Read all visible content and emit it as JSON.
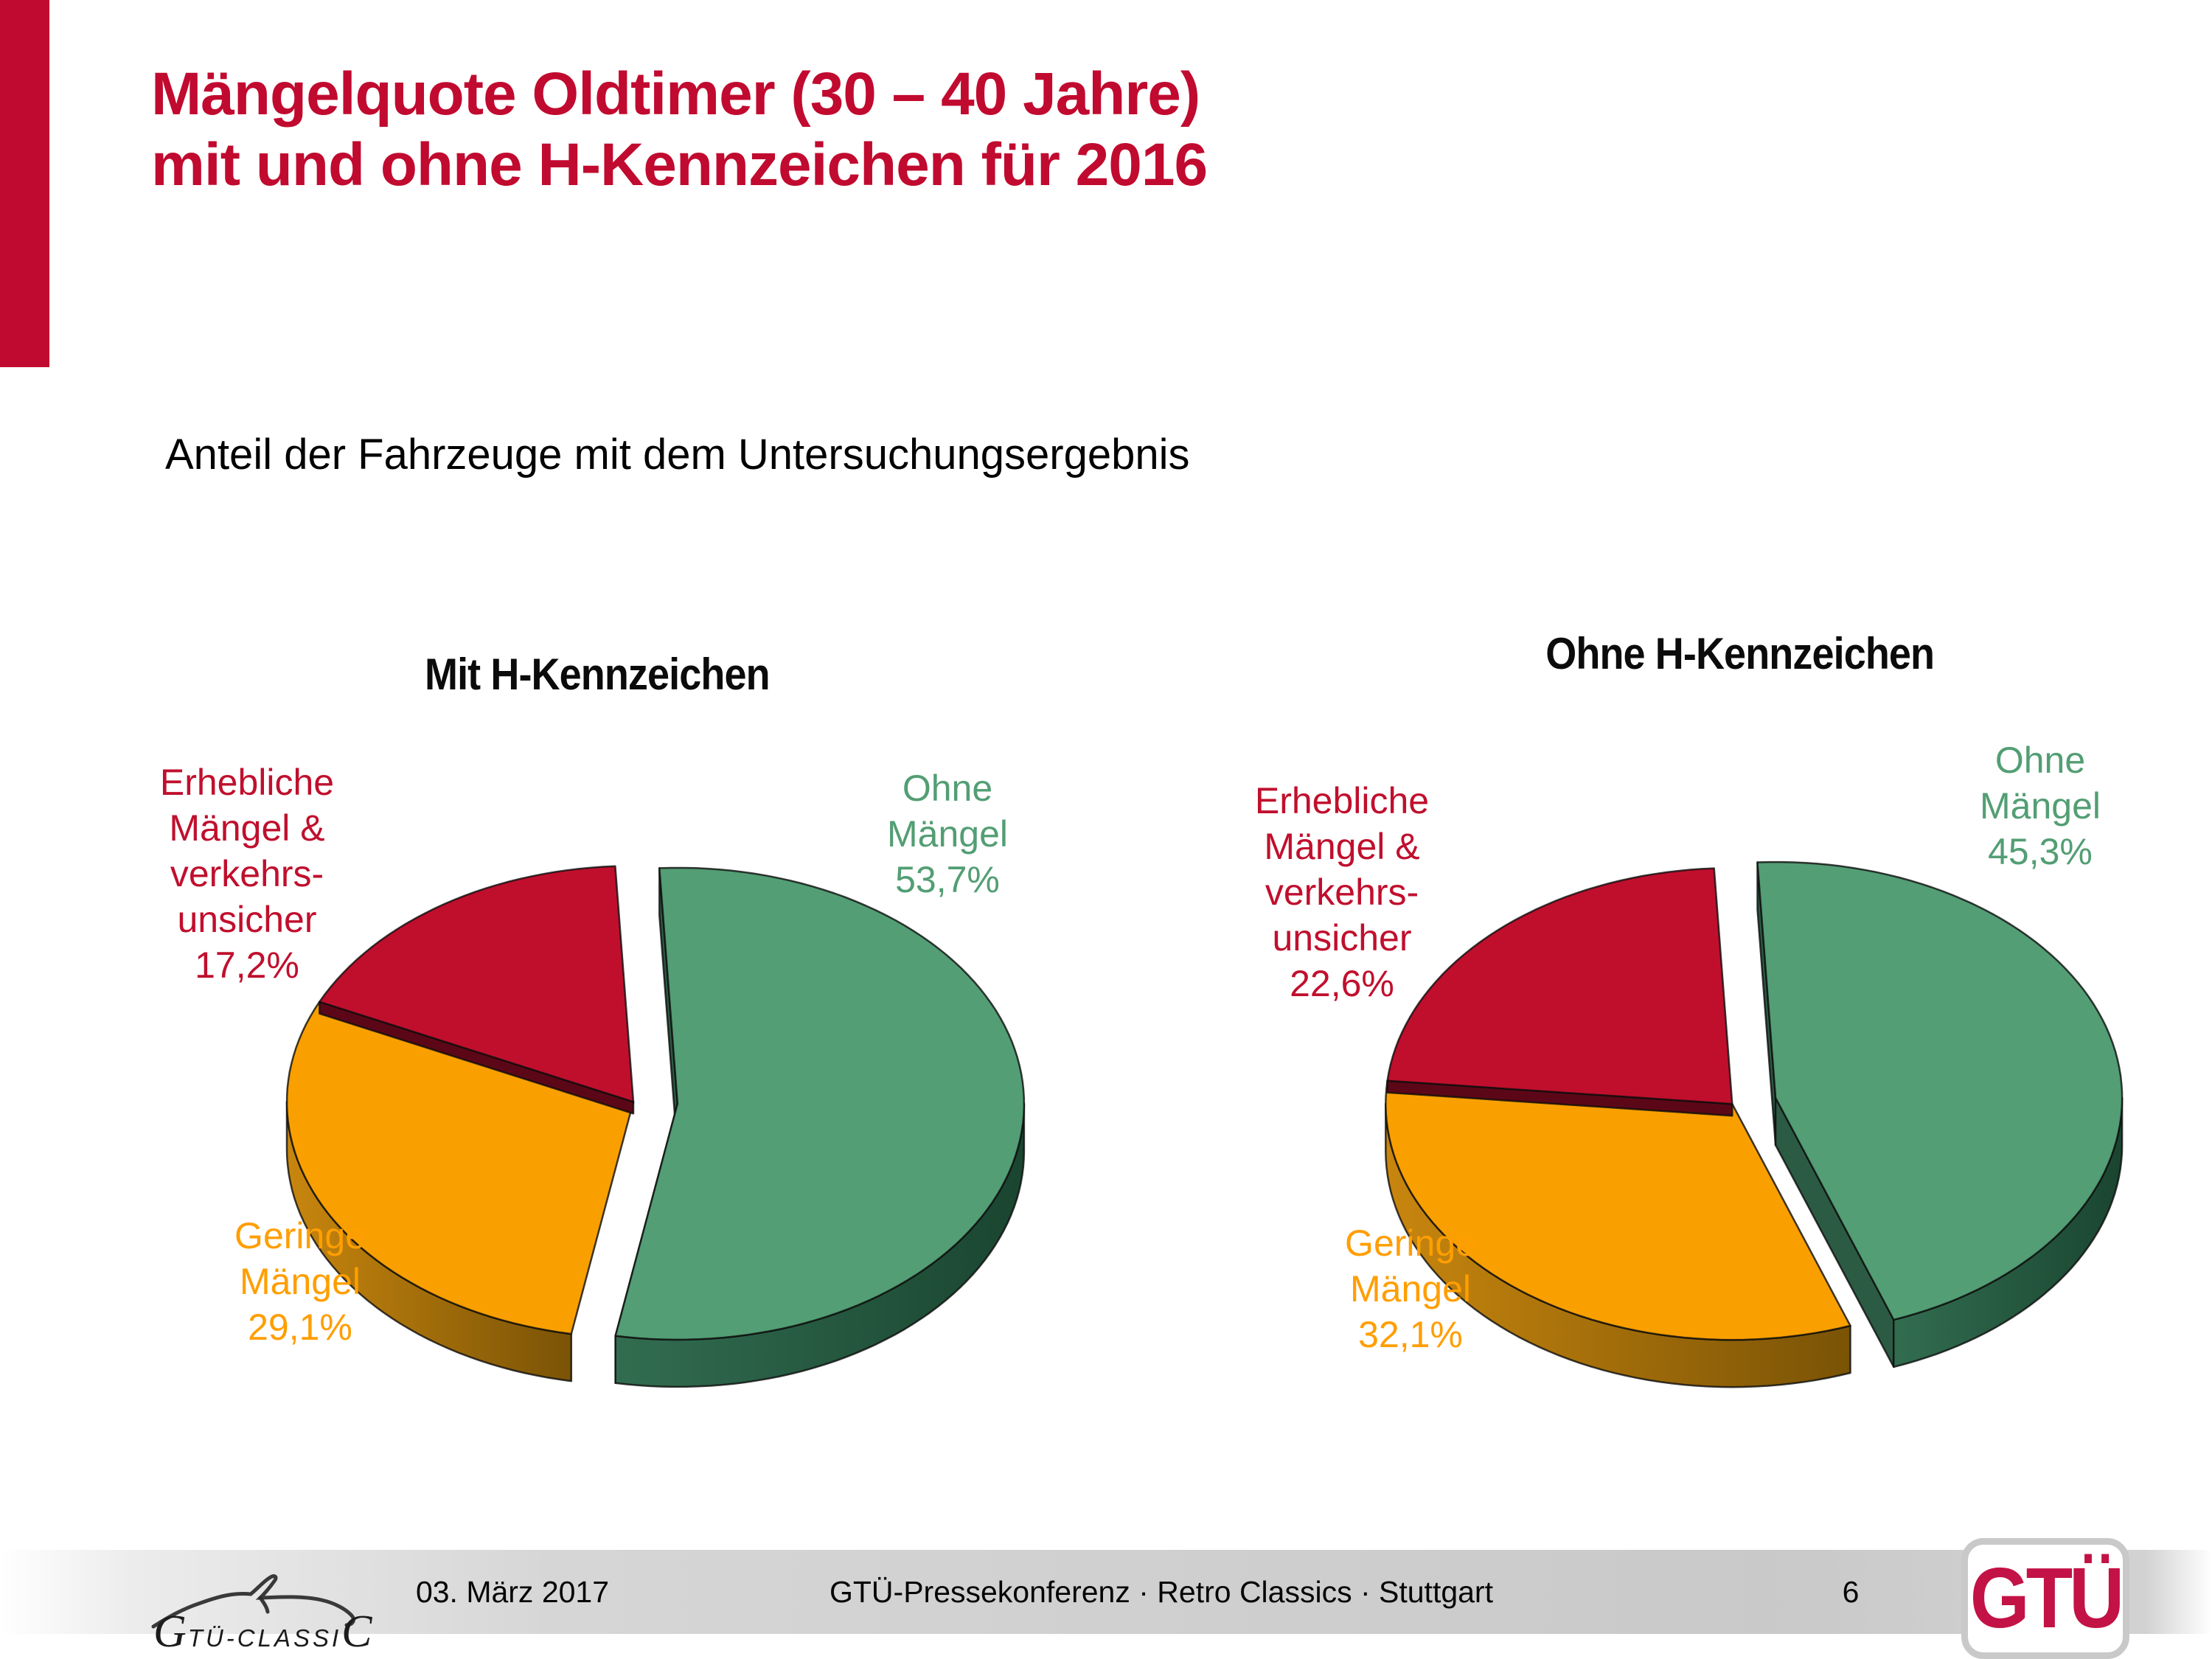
{
  "slide": {
    "title_line1": "Mängelquote Oldtimer (30 – 40 Jahre)",
    "title_line2": "mit und ohne H-Kennzeichen für 2016",
    "subtitle": "Anteil der Fahrzeuge mit dem Untersuchungsergebnis",
    "accent_color": "#c10a2f"
  },
  "chart_data": [
    {
      "type": "pie",
      "style": "3d-exploded",
      "title": "Mit H-Kennzeichen",
      "unit": "%",
      "slices": [
        {
          "label": "Ohne Mängel",
          "label_lines": [
            "Ohne",
            "Mängel"
          ],
          "value": 53.7,
          "display": "53,7%",
          "color": "#539e74",
          "side_color": "#2c5b44",
          "side_gradient": [
            "#326d50",
            "#1a4530"
          ],
          "exploded": true
        },
        {
          "label": "Geringe Mängel",
          "label_lines": [
            "Geringe",
            "Mängel"
          ],
          "value": 29.1,
          "display": "29,1%",
          "color": "#f9a000",
          "side_color": "#9a6606",
          "side_gradient": [
            "#c8860e",
            "#7a5306"
          ],
          "label_color": "#ff9e00",
          "exploded": false
        },
        {
          "label": "Erhebliche Mängel & verkehrsunsicher",
          "label_lines": [
            "Erhebliche",
            "Mängel &",
            "verkehrs-",
            "unsicher"
          ],
          "value": 17.2,
          "display": "17,2%",
          "color": "#c00f2d",
          "side_color": "#5c0717",
          "exploded": false
        }
      ]
    },
    {
      "type": "pie",
      "style": "3d-exploded",
      "title": "Ohne H-Kennzeichen",
      "unit": "%",
      "slices": [
        {
          "label": "Ohne Mängel",
          "label_lines": [
            "Ohne",
            "Mängel"
          ],
          "value": 45.3,
          "display": "45,3%",
          "color": "#539e74",
          "side_color": "#2c5b44",
          "side_gradient": [
            "#326d50",
            "#1a4530"
          ],
          "exploded": true
        },
        {
          "label": "Geringe Mängel",
          "label_lines": [
            "Geringe",
            "Mängel"
          ],
          "value": 32.1,
          "display": "32,1%",
          "color": "#f9a000",
          "side_color": "#9a6606",
          "side_gradient": [
            "#c8860e",
            "#7a5306"
          ],
          "label_color": "#ff9e00",
          "exploded": false
        },
        {
          "label": "Erhebliche Mängel & verkehrsunsicher",
          "label_lines": [
            "Erhebliche",
            "Mängel &",
            "verkehrs-",
            "unsicher"
          ],
          "value": 22.6,
          "display": "22,6%",
          "color": "#c00f2d",
          "side_color": "#5c0717",
          "exploded": false
        }
      ]
    }
  ],
  "footer": {
    "date": "03. März 2017",
    "event": "GTÜ-Pressekonferenz · Retro Classics · Stuttgart",
    "page_number": "6",
    "logo_classic": "GTÜ-CLASSIC",
    "logo_brand": "GTÜ"
  }
}
